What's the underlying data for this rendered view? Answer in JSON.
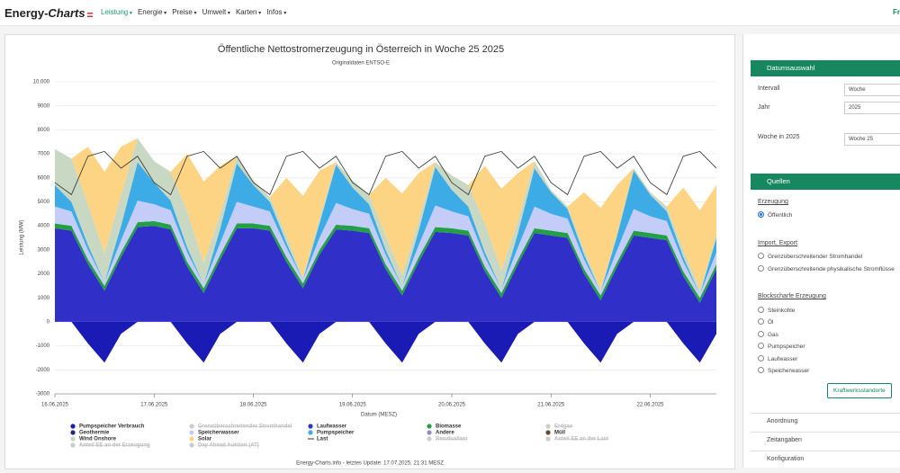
{
  "nav": {
    "logo": "Energy-",
    "logo_bold": "Charts",
    "items": [
      "Leistung",
      "Energie",
      "Preise",
      "Umwelt",
      "Karten",
      "Infos"
    ],
    "corner": "Fr"
  },
  "chart_data": {
    "type": "area",
    "title": "Öffentliche Nettostromerzeugung in Österreich in Woche 25 2025",
    "subtitle": "Originaldaten ENTSO-E",
    "x_label": "Datum (MESZ)",
    "y_label": "Leistung (MW)",
    "stacked": true,
    "grid": true,
    "x": [
      0,
      4,
      8,
      12,
      16,
      20,
      24,
      28,
      32,
      36,
      40,
      44,
      48,
      52,
      56,
      60,
      64,
      68,
      72,
      76,
      80,
      84,
      88,
      92,
      96,
      100,
      104,
      108,
      112,
      116,
      120,
      124,
      128,
      132,
      136,
      140,
      144,
      148,
      152,
      156,
      160
    ],
    "xlim": [
      0,
      160
    ],
    "xticks": [
      {
        "value": 0,
        "label": "16.06.2025"
      },
      {
        "value": 24,
        "label": "17.06.2025"
      },
      {
        "value": 48,
        "label": "18.06.2025"
      },
      {
        "value": 72,
        "label": "19.06.2025"
      },
      {
        "value": 96,
        "label": "20.06.2025"
      },
      {
        "value": 120,
        "label": "21.06.2025"
      },
      {
        "value": 144,
        "label": "22.06.2025"
      }
    ],
    "ylim": [
      -3000,
      10000
    ],
    "yticks": [
      -3000,
      -2000,
      -1000,
      0,
      1000,
      2000,
      3000,
      4000,
      5000,
      6000,
      7000,
      8000,
      9000,
      {
        "value": 10000,
        "label": "10.000"
      }
    ],
    "series": [
      {
        "name": "Pumpspeicher Verbrauch",
        "color": "#1a1ab4",
        "values": [
          0,
          0,
          -900,
          -1700,
          -500,
          0,
          0,
          0,
          -900,
          -1700,
          -500,
          0,
          0,
          0,
          -900,
          -1700,
          -500,
          0,
          0,
          0,
          -900,
          -1700,
          -500,
          0,
          0,
          0,
          -900,
          -1700,
          -500,
          0,
          0,
          0,
          -900,
          -1700,
          -500,
          0,
          0,
          0,
          -900,
          -1700,
          -500
        ]
      },
      {
        "name": "Grenzüberschreitender Stromhandel",
        "color": "#bdbdbd",
        "hidden": true
      },
      {
        "name": "Laufwasser",
        "color": "#3030c8",
        "values": [
          3900,
          3800,
          2400,
          1300,
          2700,
          3950,
          4000,
          3850,
          2300,
          1200,
          2600,
          3900,
          3900,
          3800,
          2500,
          1400,
          2800,
          3850,
          3800,
          3700,
          2200,
          1100,
          2500,
          3750,
          3700,
          3600,
          2100,
          1000,
          2400,
          3700,
          3600,
          3500,
          2000,
          900,
          2300,
          3600,
          3500,
          3400,
          1900,
          800,
          2200
        ]
      },
      {
        "name": "Biomasse",
        "color": "#23a046",
        "values": [
          200,
          200,
          200,
          200,
          200,
          200,
          200,
          200,
          200,
          200,
          200,
          200,
          200,
          200,
          200,
          200,
          200,
          200,
          200,
          200,
          200,
          200,
          200,
          200,
          200,
          200,
          200,
          200,
          200,
          200,
          200,
          200,
          200,
          200,
          200,
          200,
          200,
          200,
          200,
          200,
          200
        ]
      },
      {
        "name": "Erdgas",
        "color": "#b5b5b5",
        "hidden": true
      },
      {
        "name": "Geothermie",
        "color": "#26267a"
      },
      {
        "name": "Speicherwasser",
        "color": "#c3cdf8",
        "values": [
          700,
          600,
          400,
          150,
          500,
          900,
          700,
          600,
          400,
          150,
          500,
          900,
          700,
          600,
          400,
          150,
          500,
          900,
          700,
          600,
          400,
          150,
          500,
          900,
          700,
          600,
          400,
          150,
          500,
          900,
          700,
          600,
          400,
          150,
          500,
          900,
          700,
          600,
          400,
          150,
          500
        ]
      },
      {
        "name": "Pumpspeicher",
        "color": "#3cabe6",
        "values": [
          900,
          400,
          200,
          0,
          600,
          1600,
          900,
          400,
          200,
          0,
          600,
          1600,
          900,
          400,
          200,
          0,
          600,
          1600,
          900,
          400,
          200,
          0,
          600,
          1600,
          900,
          400,
          200,
          0,
          600,
          1600,
          900,
          400,
          200,
          0,
          600,
          1600,
          900,
          400,
          200,
          0,
          600
        ]
      },
      {
        "name": "Andere",
        "color": "#9c86c4"
      },
      {
        "name": "Müll",
        "color": "#6b4a2c"
      },
      {
        "name": "Wind Onshore",
        "color": "#c9d8c3",
        "values": [
          1500,
          1800,
          1700,
          1200,
          1300,
          1000,
          900,
          1200,
          1500,
          900,
          600,
          300,
          200,
          200,
          300,
          100,
          200,
          100,
          300,
          400,
          600,
          500,
          400,
          200,
          600,
          900,
          1200,
          800,
          500,
          300,
          100,
          100,
          200,
          100,
          100,
          100,
          100,
          200,
          300,
          200,
          100
        ]
      },
      {
        "name": "Solar",
        "color": "#fdd484",
        "values": [
          0,
          0,
          2400,
          3400,
          2000,
          0,
          0,
          0,
          2400,
          3400,
          2000,
          0,
          0,
          0,
          2400,
          3400,
          2000,
          0,
          0,
          0,
          2400,
          3400,
          2000,
          0,
          0,
          0,
          2400,
          3400,
          2000,
          0,
          0,
          0,
          2400,
          3400,
          2000,
          0,
          0,
          0,
          2600,
          3300,
          2100
        ]
      },
      {
        "name": "Last",
        "color": "#333333",
        "style": "line",
        "values": [
          5800,
          5300,
          6900,
          7100,
          6400,
          6900,
          5800,
          5300,
          6900,
          7100,
          6400,
          6900,
          5800,
          5300,
          6900,
          7100,
          6400,
          6900,
          5800,
          5300,
          6900,
          7100,
          6400,
          6900,
          5800,
          5300,
          6900,
          7100,
          6400,
          6900,
          5800,
          5300,
          6900,
          7100,
          6400,
          6900,
          5800,
          5300,
          6900,
          7100,
          6400
        ]
      },
      {
        "name": "Residuallast",
        "color": "#b5b5b5",
        "hidden": true
      },
      {
        "name": "Anteil EE an der Last",
        "color": "#b5b5b5",
        "hidden": true
      },
      {
        "name": "Anteil EE an der Erzeugung",
        "color": "#b5b5b5",
        "hidden": true
      },
      {
        "name": "Day Ahead Auktion (AT)",
        "color": "#b5b5b5",
        "hidden": true
      }
    ],
    "footer": "Energy-Charts.info - letztes Update: 17.07.2025, 21:31 MESZ"
  },
  "sidebar": {
    "date_panel": {
      "title": "Datumsauswahl",
      "fields": [
        {
          "label": "Intervall",
          "value": "Woche"
        },
        {
          "label": "Jahr",
          "value": "2025"
        },
        {
          "label": "Woche in 2025",
          "value": "Woche 25"
        }
      ]
    },
    "sources": {
      "title": "Quellen",
      "group1": "Erzeugung",
      "group1_options": [
        "Öffentlich"
      ],
      "group2": "Import, Export",
      "group2_options": [
        "Grenzüberschreitender Stromhandel",
        "Grenzüberschreitende physikalische Stromflüsse"
      ],
      "group3": "Blockscharfe Erzeugung",
      "group3_options": [
        "Steinkohle",
        "Öl",
        "Gas",
        "Pumpspeicher",
        "Laufwasser",
        "Speicherwasser"
      ],
      "button": "Kraftwerksstandorte"
    },
    "collapsibles": [
      "Anordnung",
      "Zeitangaben",
      "Konfiguration"
    ]
  }
}
